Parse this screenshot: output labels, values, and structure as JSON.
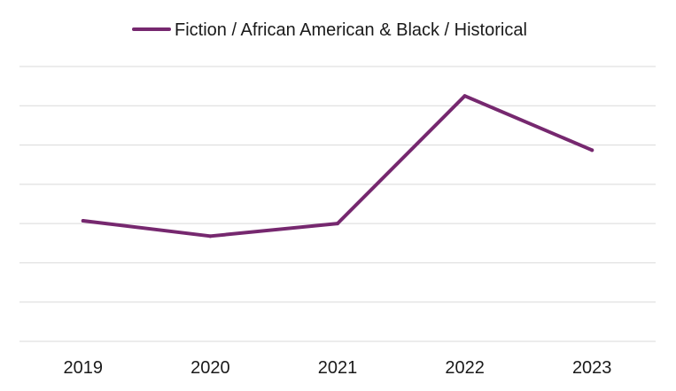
{
  "chart_data": {
    "type": "line",
    "categories": [
      "2019",
      "2020",
      "2021",
      "2022",
      "2023"
    ],
    "series": [
      {
        "name": "Fiction / African American & Black / Historical",
        "color": "#76286f",
        "values": [
          3.07,
          2.68,
          3.0,
          6.25,
          4.87
        ]
      }
    ],
    "ylim": [
      0,
      7
    ],
    "grid": true,
    "y_tick_labels_shown": false,
    "legend_position": "top"
  }
}
